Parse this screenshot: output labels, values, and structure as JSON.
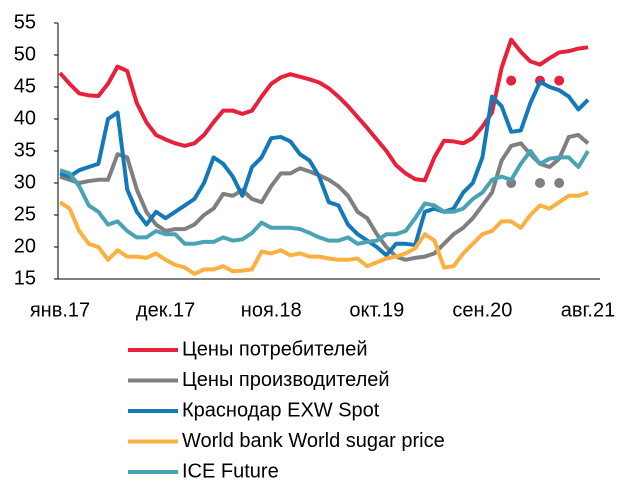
{
  "chart_data": {
    "type": "line",
    "categories": [
      "янв.17",
      null,
      null,
      null,
      null,
      null,
      null,
      null,
      null,
      null,
      null,
      "дек.17",
      null,
      null,
      null,
      null,
      null,
      null,
      null,
      null,
      null,
      null,
      "ноя.18",
      null,
      null,
      null,
      null,
      null,
      null,
      null,
      null,
      null,
      null,
      "окт.19",
      null,
      null,
      null,
      null,
      null,
      null,
      null,
      null,
      null,
      null,
      "сен.20",
      null,
      null,
      null,
      null,
      null,
      null,
      null,
      null,
      null,
      null,
      "авг.21"
    ],
    "ylim": [
      15,
      55
    ],
    "yticks": [
      15,
      20,
      25,
      30,
      35,
      40,
      45,
      50,
      55
    ],
    "grid": false,
    "series": [
      {
        "name": "Цены потребителей",
        "color": "#e8203a",
        "values": [
          47.2,
          45.5,
          44,
          43.7,
          43.6,
          45.5,
          48.2,
          47.5,
          42.5,
          39.5,
          37.5,
          36.8,
          36.2,
          35.8,
          36.2,
          37.5,
          39.5,
          41.3,
          41.3,
          40.8,
          41.3,
          43.5,
          45.5,
          46.5,
          47,
          46.6,
          46.2,
          45.7,
          44.8,
          43.5,
          42,
          40.3,
          38.6,
          36.8,
          35,
          32.8,
          31.5,
          30.6,
          30.4,
          34,
          36.6,
          36.5,
          36.2,
          37,
          38.8,
          41,
          48,
          52.4,
          50.5,
          49,
          48.5,
          49.5,
          50.4,
          50.6,
          51,
          51.2
        ],
        "dots": [
          null,
          null,
          null,
          null,
          null,
          null,
          null,
          null,
          null,
          null,
          null,
          null,
          null,
          null,
          null,
          null,
          null,
          null,
          null,
          null,
          null,
          null,
          null,
          null,
          null,
          null,
          null,
          null,
          null,
          null,
          null,
          null,
          null,
          null,
          null,
          null,
          null,
          null,
          null,
          null,
          null,
          null,
          null,
          null,
          null,
          null,
          null,
          46,
          null,
          null,
          46,
          null,
          46,
          null,
          null,
          null
        ]
      },
      {
        "name": "Цены производителей",
        "color": "#7f7f7f",
        "values": [
          31,
          30.5,
          30,
          30.3,
          30.5,
          30.5,
          34.5,
          34,
          29,
          25.5,
          23.5,
          22.5,
          22.8,
          22.8,
          23.5,
          25,
          26,
          28.3,
          28,
          28.9,
          27.5,
          27,
          29.5,
          31.5,
          31.5,
          32.3,
          31.8,
          31.2,
          30.5,
          29.5,
          28,
          25.5,
          24.5,
          22,
          20,
          18.5,
          18,
          18.3,
          18.5,
          19,
          20.5,
          22,
          23,
          24.5,
          26.5,
          28.5,
          33.5,
          35.8,
          36.2,
          34.5,
          33,
          32.5,
          33.8,
          37.2,
          37.5,
          36.2
        ],
        "dots": [
          null,
          null,
          null,
          null,
          null,
          null,
          null,
          null,
          null,
          null,
          null,
          null,
          null,
          null,
          null,
          null,
          null,
          null,
          null,
          null,
          null,
          null,
          null,
          null,
          null,
          null,
          null,
          null,
          null,
          null,
          null,
          null,
          null,
          null,
          null,
          null,
          null,
          null,
          null,
          null,
          null,
          null,
          null,
          null,
          null,
          null,
          null,
          30,
          null,
          null,
          30,
          null,
          30,
          null,
          null,
          null
        ]
      },
      {
        "name": "Краснодар EXW Spot",
        "color": "#1479b9",
        "values": [
          31.5,
          31,
          32,
          32.5,
          33,
          40,
          41,
          29,
          25.5,
          23.5,
          25.5,
          24.5,
          25.5,
          26.5,
          27.5,
          30,
          34,
          33,
          31,
          28,
          32.5,
          34,
          37,
          37.2,
          36.5,
          34.5,
          33.5,
          31,
          27,
          26.5,
          23.5,
          22,
          21,
          20,
          18.7,
          20.5,
          20.5,
          20.3,
          25.5,
          26,
          25.5,
          26,
          28.5,
          30,
          34,
          43.5,
          42,
          38,
          38.2,
          42.5,
          45.8,
          45,
          44.5,
          43.5,
          41.5,
          43
        ]
      },
      {
        "name": "World bank World sugar price",
        "color": "#fbb040",
        "values": [
          27,
          26,
          22.5,
          20.5,
          20,
          18,
          19.5,
          18.5,
          18.5,
          18.3,
          19,
          18,
          17.2,
          16.8,
          15.8,
          16.5,
          16.5,
          17,
          16.2,
          16.3,
          16.5,
          19.3,
          19,
          19.5,
          18.7,
          19,
          18.5,
          18.5,
          18.2,
          18,
          18,
          18.2,
          17,
          17.6,
          18.2,
          18.5,
          19,
          19.8,
          22,
          21,
          16.8,
          17,
          19,
          20.5,
          22,
          22.5,
          24,
          24,
          23,
          25,
          26.5,
          26,
          27,
          28,
          28,
          28.5
        ]
      },
      {
        "name": "ICE Future",
        "color": "#4aa3b5",
        "values": [
          32,
          31.5,
          29.5,
          26.5,
          25.5,
          23.5,
          24,
          22.5,
          21.5,
          21.5,
          22.5,
          22,
          22,
          20.5,
          20.5,
          20.8,
          20.8,
          21.5,
          21,
          21.2,
          22.2,
          23.8,
          23,
          23,
          23,
          22.8,
          22.2,
          21.5,
          21,
          21,
          21.5,
          20.5,
          20.8,
          21,
          22,
          22,
          22.5,
          24.5,
          26.8,
          26.5,
          25.5,
          25.5,
          26,
          27.5,
          28.5,
          30.5,
          31,
          30.5,
          33,
          35,
          33,
          33.8,
          34,
          34,
          32.5,
          35
        ]
      }
    ]
  }
}
